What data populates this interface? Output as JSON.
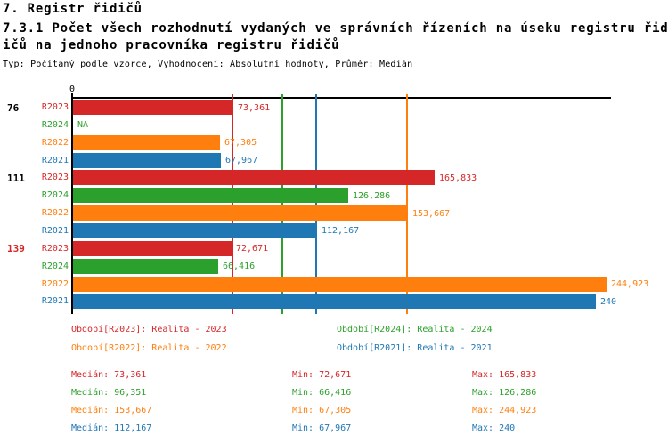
{
  "header": {
    "title_line1": "7. Registr řidičů",
    "title_line2": "7.3.1 Počet všech rozhodnutí vydaných ve správních řízeních na úseku registru řid",
    "title_line3": "ičů na jednoho pracovníka registru řidičů",
    "subtitle": "Typ: Počítaný podle vzorce, Vyhodnocení: Absolutní hodnoty, Průměr: Medián"
  },
  "chart_data": {
    "type": "bar",
    "orientation": "horizontal",
    "title": "7.3.1 Počet všech rozhodnutí vydaných ve správních řízeních na úseku registru řidičů na jednoho pracovníka registru řidičů",
    "xlabel": "",
    "ylabel": "",
    "xlim": [
      0,
      247
    ],
    "axis_zero_label": "0",
    "legend_position": "bottom",
    "grid": "per-series median vertical lines",
    "series": [
      {
        "id": "R2023",
        "label": "R2023",
        "color": "#d62728",
        "legend": "Období[R2023]: Realita - 2023",
        "median": 73.361,
        "median_label": "Medián: 73,361",
        "min_label": "Min: 72,671",
        "max_label": "Max: 165,833"
      },
      {
        "id": "R2024",
        "label": "R2024",
        "color": "#2ca02c",
        "legend": "Období[R2024]: Realita - 2024",
        "median": 96.351,
        "median_label": "Medián: 96,351",
        "min_label": "Min: 66,416",
        "max_label": "Max: 126,286"
      },
      {
        "id": "R2022",
        "label": "R2022",
        "color": "#ff7f0e",
        "legend": "Období[R2022]: Realita - 2022",
        "median": 153.667,
        "median_label": "Medián: 153,667",
        "min_label": "Min: 67,305",
        "max_label": "Max: 244,923"
      },
      {
        "id": "R2021",
        "label": "R2021",
        "color": "#1f77b4",
        "legend": "Období[R2021]: Realita - 2021",
        "median": 112.167,
        "median_label": "Medián: 112,167",
        "min_label": "Min: 67,967",
        "max_label": "Max: 240"
      }
    ],
    "groups": [
      {
        "label": "76",
        "label_color": "#000000",
        "bars": [
          {
            "series": "R2023",
            "value": 73.361,
            "value_label": "73,361"
          },
          {
            "series": "R2024",
            "value": null,
            "value_label": "NA"
          },
          {
            "series": "R2022",
            "value": 67.305,
            "value_label": "67,305"
          },
          {
            "series": "R2021",
            "value": 67.967,
            "value_label": "67,967"
          }
        ]
      },
      {
        "label": "111",
        "label_color": "#000000",
        "bars": [
          {
            "series": "R2023",
            "value": 165.833,
            "value_label": "165,833"
          },
          {
            "series": "R2024",
            "value": 126.286,
            "value_label": "126,286"
          },
          {
            "series": "R2022",
            "value": 153.667,
            "value_label": "153,667"
          },
          {
            "series": "R2021",
            "value": 112.167,
            "value_label": "112,167"
          }
        ]
      },
      {
        "label": "139",
        "label_color": "#d62728",
        "bars": [
          {
            "series": "R2023",
            "value": 72.671,
            "value_label": "72,671"
          },
          {
            "series": "R2024",
            "value": 66.416,
            "value_label": "66,416"
          },
          {
            "series": "R2022",
            "value": 244.923,
            "value_label": "244,923"
          },
          {
            "series": "R2021",
            "value": 240,
            "value_label": "240"
          }
        ]
      }
    ]
  }
}
